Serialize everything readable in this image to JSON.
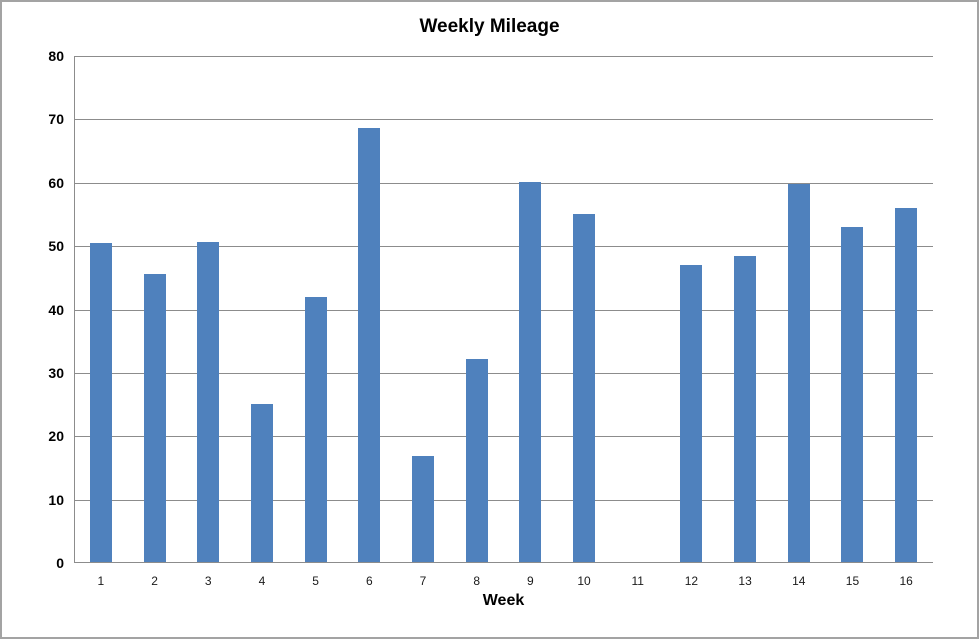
{
  "chart_data": {
    "type": "bar",
    "title": "Weekly Mileage",
    "xlabel": "Week",
    "ylabel": "",
    "categories": [
      "1",
      "2",
      "3",
      "4",
      "5",
      "6",
      "7",
      "8",
      "9",
      "10",
      "11",
      "12",
      "13",
      "14",
      "15",
      "16"
    ],
    "values": [
      50.3,
      45.4,
      50.5,
      24.9,
      41.8,
      68.5,
      16.8,
      32.0,
      60.0,
      54.9,
      0,
      46.8,
      48.3,
      59.6,
      52.9,
      55.8
    ],
    "ylim": [
      0,
      80
    ],
    "yticks": [
      0,
      10,
      20,
      30,
      40,
      50,
      60,
      70,
      80
    ],
    "grid": true,
    "legend": false,
    "colors": {
      "bar": "#4f81bd",
      "gridline": "#8c8c8c",
      "axis": "#8c8c8c",
      "frame_border": "#a3a3a3",
      "text": "#000000"
    }
  }
}
